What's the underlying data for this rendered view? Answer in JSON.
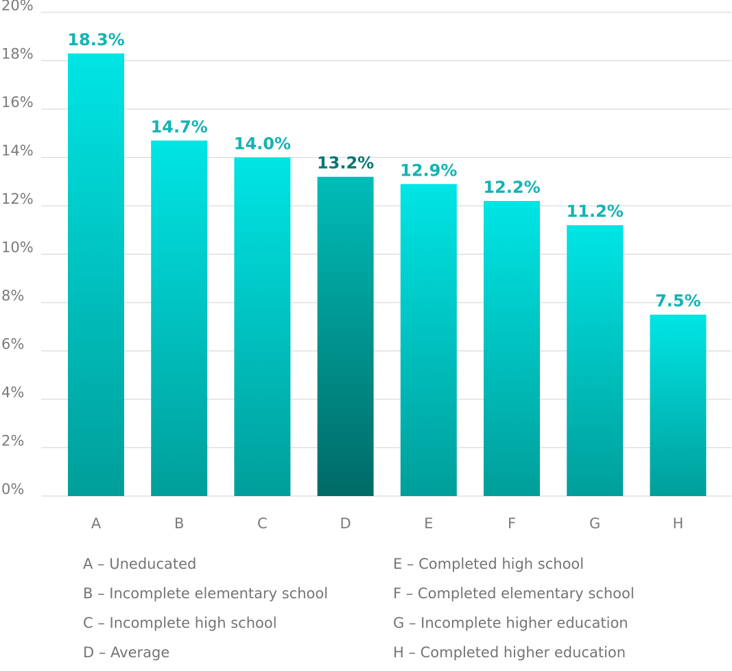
{
  "chart_data": {
    "type": "bar",
    "title": "",
    "xlabel": "",
    "ylabel": "",
    "ylim": [
      0,
      20
    ],
    "yticks": [
      "0%",
      "2%",
      "4%",
      "6%",
      "8%",
      "10%",
      "12%",
      "14%",
      "16%",
      "18%",
      "20%"
    ],
    "grid": true,
    "categories": [
      "A",
      "B",
      "C",
      "D",
      "E",
      "F",
      "G",
      "H"
    ],
    "values": [
      18.3,
      14.7,
      14.0,
      13.2,
      12.9,
      12.2,
      11.2,
      7.5
    ],
    "value_labels": [
      "18.3%",
      "14.7%",
      "14.0%",
      "13.2%",
      "12.9%",
      "12.2%",
      "11.2%",
      "7.5%"
    ],
    "highlight": "D",
    "legend": [
      "A – Uneducated",
      "E – Completed high school",
      "B – Incomplete elementary school",
      "F – Completed elementary school",
      "C – Incomplete high school",
      "G – Incomplete higher education",
      "D – Average",
      "H – Completed higher education"
    ],
    "legend_placement": "bottom",
    "colors": {
      "bar_top": "#00e5e5",
      "bar_bottom": "#009e9a",
      "highlight_top": "#00bdb8",
      "highlight_bottom": "#006a66",
      "label": "#14b3b3",
      "highlight_label": "#0a7774",
      "grid": "#d9d9d9"
    }
  }
}
